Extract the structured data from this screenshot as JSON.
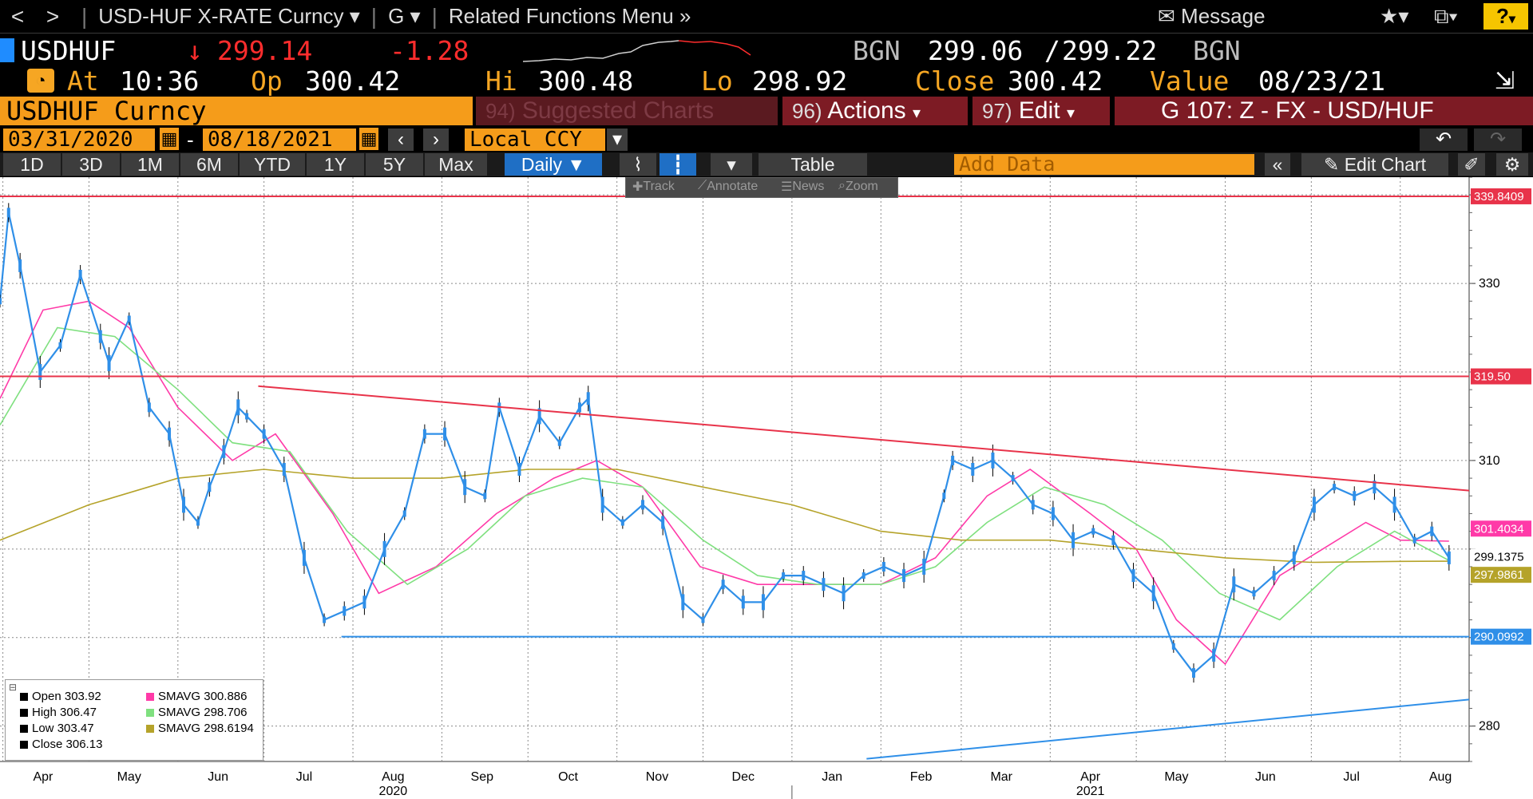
{
  "nav": {
    "back": "<",
    "forward": ">",
    "security_menu": "USD-HUF X-RATE Curncy",
    "g_menu": "G",
    "related": "Related Functions Menu",
    "message": "Message",
    "help": "?"
  },
  "quote": {
    "ticker": "USDHUF",
    "last": "299.14",
    "change": "-1.28",
    "bid_source": "BGN",
    "bid": "299.06",
    "ask": "299.22",
    "ask_source": "BGN"
  },
  "stats": {
    "at_label": "At",
    "at": "10:36",
    "open_label": "Op",
    "open": "300.42",
    "high_label": "Hi",
    "high": "300.48",
    "low_label": "Lo",
    "low": "298.92",
    "close_label": "Close",
    "close": "300.42",
    "value_label": "Value",
    "value_date": "08/23/21"
  },
  "security_bar": {
    "name": "USDHUF Curncy",
    "suggested_num": "94)",
    "suggested": "Suggested Charts",
    "actions_num": "96)",
    "actions": "Actions",
    "edit_num": "97)",
    "edit": "Edit",
    "template": "G 107: Z - FX - USD/HUF"
  },
  "date_bar": {
    "start": "03/31/2020",
    "dash": "-",
    "end": "08/18/2021",
    "currency": "Local CCY"
  },
  "range_bar": {
    "buttons": [
      "1D",
      "3D",
      "1M",
      "6M",
      "YTD",
      "1Y",
      "5Y",
      "Max"
    ],
    "period": "Daily",
    "table": "Table",
    "add_data_placeholder": "Add Data",
    "edit_chart": "Edit Chart"
  },
  "tools": {
    "track": "Track",
    "annotate": "Annotate",
    "news": "News",
    "zoom": "Zoom"
  },
  "colors": {
    "price": "#2f8fe8",
    "sma1": "#ff3aa8",
    "sma2": "#7fe07f",
    "sma3": "#b5a32a",
    "resist": "#e8334a",
    "support": "#2f8fe8",
    "grid": "#888888",
    "bg": "#ffffff"
  },
  "legend": {
    "open_label": "Open",
    "open": "303.92",
    "high_label": "High",
    "high": "306.47",
    "low_label": "Low",
    "low": "303.47",
    "close_label": "Close",
    "close": "306.13",
    "sma1_label": "SMAVG",
    "sma1": "300.886",
    "sma2_label": "SMAVG",
    "sma2": "298.706",
    "sma3_label": "SMAVG",
    "sma3": "298.6194"
  },
  "chart_data": {
    "type": "line",
    "ylim": [
      276,
      342
    ],
    "yticks": [
      280,
      290,
      300,
      310,
      320,
      330,
      340
    ],
    "ytick_labels": [
      "280",
      "",
      "",
      "310",
      "",
      "330",
      ""
    ],
    "months": [
      "Apr",
      "May",
      "Jun",
      "Jul",
      "Aug",
      "Sep",
      "Oct",
      "Nov",
      "Dec",
      "Jan",
      "Feb",
      "Mar",
      "Apr",
      "May",
      "Jun",
      "Jul",
      "Aug"
    ],
    "years": [
      "2020",
      "2021"
    ],
    "x_start": "2020-03-31",
    "x_end": "2021-08-25",
    "series": [
      {
        "name": "Close",
        "x": [
          "2020-03-31",
          "2020-04-03",
          "2020-04-07",
          "2020-04-14",
          "2020-04-21",
          "2020-04-28",
          "2020-05-05",
          "2020-05-08",
          "2020-05-15",
          "2020-05-22",
          "2020-05-29",
          "2020-06-03",
          "2020-06-08",
          "2020-06-12",
          "2020-06-17",
          "2020-06-22",
          "2020-06-25",
          "2020-07-01",
          "2020-07-08",
          "2020-07-15",
          "2020-07-22",
          "2020-07-29",
          "2020-08-05",
          "2020-08-12",
          "2020-08-19",
          "2020-08-26",
          "2020-09-02",
          "2020-09-09",
          "2020-09-16",
          "2020-09-21",
          "2020-09-28",
          "2020-10-05",
          "2020-10-12",
          "2020-10-19",
          "2020-10-22",
          "2020-10-27",
          "2020-11-03",
          "2020-11-10",
          "2020-11-17",
          "2020-11-24",
          "2020-12-01",
          "2020-12-08",
          "2020-12-15",
          "2020-12-22",
          "2020-12-29",
          "2021-01-05",
          "2021-01-12",
          "2021-01-19",
          "2021-01-26",
          "2021-02-02",
          "2021-02-09",
          "2021-02-16",
          "2021-02-23",
          "2021-02-26",
          "2021-03-05",
          "2021-03-12",
          "2021-03-19",
          "2021-03-26",
          "2021-04-02",
          "2021-04-09",
          "2021-04-16",
          "2021-04-23",
          "2021-04-30",
          "2021-05-07",
          "2021-05-14",
          "2021-05-21",
          "2021-05-28",
          "2021-06-04",
          "2021-06-11",
          "2021-06-18",
          "2021-06-25",
          "2021-07-02",
          "2021-07-09",
          "2021-07-16",
          "2021-07-23",
          "2021-07-30",
          "2021-08-06",
          "2021-08-12",
          "2021-08-18"
        ],
        "values": [
          328,
          338,
          332,
          320,
          323,
          331,
          324,
          321,
          326,
          316,
          313,
          305,
          303,
          307,
          311,
          316,
          315,
          313,
          309,
          299,
          292,
          293,
          294,
          300,
          304,
          313,
          313,
          307,
          306,
          316,
          309,
          315,
          312,
          316,
          317,
          305,
          303,
          305,
          303,
          294,
          292,
          296,
          294,
          294,
          297,
          297,
          296,
          295,
          297,
          298,
          297,
          298,
          306,
          310,
          309,
          310,
          308,
          305,
          304,
          301,
          302,
          301,
          297,
          295,
          289,
          286,
          288,
          296,
          295,
          297,
          299,
          305,
          307,
          306,
          307,
          305,
          301,
          302,
          299
        ]
      },
      {
        "name": "SMAVG 300.886",
        "x": [
          "2020-03-31",
          "2020-04-15",
          "2020-05-01",
          "2020-05-15",
          "2020-06-01",
          "2020-06-20",
          "2020-07-05",
          "2020-07-25",
          "2020-08-10",
          "2020-08-30",
          "2020-09-20",
          "2020-10-10",
          "2020-10-25",
          "2020-11-10",
          "2020-11-30",
          "2020-12-20",
          "2021-01-10",
          "2021-02-01",
          "2021-02-20",
          "2021-03-10",
          "2021-03-25",
          "2021-04-15",
          "2021-05-01",
          "2021-05-15",
          "2021-06-01",
          "2021-06-20",
          "2021-07-05",
          "2021-07-20",
          "2021-08-01",
          "2021-08-18"
        ],
        "values": [
          317,
          327,
          328,
          325,
          316,
          310,
          313,
          304,
          295,
          298,
          304,
          308,
          310,
          307,
          298,
          296,
          296,
          296,
          299,
          306,
          309,
          304,
          300,
          292,
          287,
          297,
          300,
          303,
          301,
          300.886
        ]
      },
      {
        "name": "SMAVG 298.706",
        "x": [
          "2020-03-31",
          "2020-04-20",
          "2020-05-10",
          "2020-06-01",
          "2020-06-20",
          "2020-07-10",
          "2020-07-30",
          "2020-08-20",
          "2020-09-10",
          "2020-09-30",
          "2020-10-20",
          "2020-11-10",
          "2020-12-01",
          "2020-12-20",
          "2021-01-10",
          "2021-02-01",
          "2021-02-20",
          "2021-03-10",
          "2021-03-30",
          "2021-04-20",
          "2021-05-10",
          "2021-05-30",
          "2021-06-20",
          "2021-07-10",
          "2021-07-30",
          "2021-08-18"
        ],
        "values": [
          314,
          325,
          324,
          318,
          312,
          311,
          302,
          296,
          300,
          306,
          308,
          307,
          301,
          297,
          296,
          296,
          298,
          303,
          307,
          305,
          301,
          295,
          292,
          298,
          302,
          298.706
        ]
      },
      {
        "name": "SMAVG 298.6194",
        "x": [
          "2020-03-31",
          "2020-05-01",
          "2020-06-01",
          "2020-07-01",
          "2020-08-01",
          "2020-09-01",
          "2020-10-01",
          "2020-11-01",
          "2020-12-01",
          "2021-01-01",
          "2021-02-01",
          "2021-03-01",
          "2021-04-01",
          "2021-05-01",
          "2021-06-01",
          "2021-07-01",
          "2021-08-01",
          "2021-08-18"
        ],
        "values": [
          301,
          305,
          308,
          309,
          308,
          308,
          309,
          309,
          307,
          305,
          302,
          301,
          301,
          300,
          299,
          298.5,
          298.6,
          298.6194
        ]
      }
    ],
    "hlines": [
      {
        "label": "339.8409",
        "y": 339.8409,
        "color": "#e8334a",
        "x_start": "2020-03-31"
      },
      {
        "label": "319.50",
        "y": 319.5,
        "color": "#e8334a",
        "x_start": "2020-03-31"
      },
      {
        "label": "290.0992",
        "y": 290.0992,
        "color": "#2f8fe8",
        "x_start": "2020-07-28"
      }
    ],
    "trendlines": [
      {
        "color": "#e8334a",
        "x": [
          "2020-06-29",
          "2021-08-25"
        ],
        "y": [
          318.4,
          306.6
        ]
      },
      {
        "color": "#2f8fe8",
        "x": [
          "2021-01-27",
          "2021-08-25"
        ],
        "y": [
          276.3,
          283.0
        ]
      }
    ],
    "price_tags": [
      {
        "label": "301.4034",
        "y": 301.4034,
        "color": "#ff3aa8"
      },
      {
        "label": "299.1375",
        "y": 299.1375,
        "color": "#000000"
      },
      {
        "label": "297.9861",
        "y": 297.9861,
        "color": "#b5a32a"
      }
    ]
  }
}
